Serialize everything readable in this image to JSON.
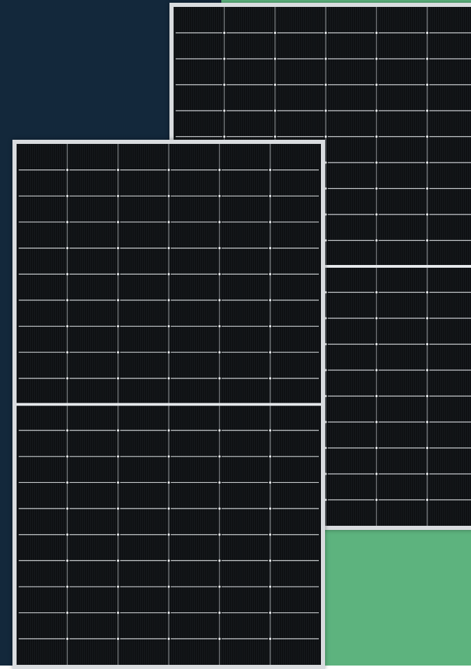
{
  "scene": {
    "background_left_color": "#13283b",
    "background_right_color": "#5db37e",
    "frame_color": "#d9dcdf",
    "cell_color": "#0b0d0f",
    "grid_line_color": "#cfd3d6",
    "busbar_color": "#e6e9ec",
    "cell_columns": 6,
    "cell_rows": 20
  }
}
